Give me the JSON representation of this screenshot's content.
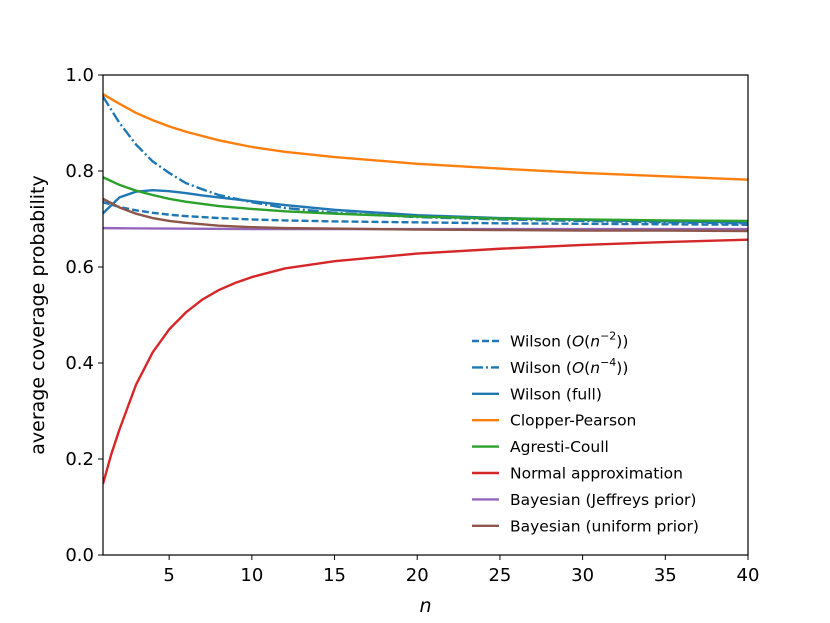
{
  "chart_data": {
    "type": "line",
    "title": "",
    "xlabel": "n",
    "ylabel": "average coverage probability",
    "xlim": [
      1,
      40
    ],
    "ylim": [
      0.0,
      1.0
    ],
    "x_ticks": [
      5,
      10,
      15,
      20,
      25,
      30,
      35,
      40
    ],
    "x_tick_labels": [
      "5",
      "10",
      "15",
      "20",
      "25",
      "30",
      "35",
      "40"
    ],
    "y_ticks": [
      0.0,
      0.2,
      0.4,
      0.6,
      0.8,
      1.0
    ],
    "y_tick_labels": [
      "0.0",
      "0.2",
      "0.4",
      "0.6",
      "0.8",
      "1.0"
    ],
    "grid": false,
    "legend_position": "lower-right",
    "series": [
      {
        "name": "Wilson (O(n^-2))",
        "legend_parts": [
          "Wilson (",
          "O",
          "(",
          "n",
          "−2",
          "))"
        ],
        "color": "#1f77b4",
        "dash": "dashed",
        "x": [
          1,
          2,
          3,
          4,
          5,
          6,
          7,
          8,
          10,
          12,
          15,
          20,
          25,
          30,
          35,
          40
        ],
        "y": [
          0.735,
          0.725,
          0.718,
          0.713,
          0.709,
          0.706,
          0.704,
          0.702,
          0.699,
          0.697,
          0.695,
          0.693,
          0.691,
          0.69,
          0.689,
          0.688
        ]
      },
      {
        "name": "Wilson (O(n^-4))",
        "legend_parts": [
          "Wilson (",
          "O",
          "(",
          "n",
          "−4",
          "))"
        ],
        "color": "#1f77b4",
        "dash": "dashdot",
        "x": [
          1,
          2,
          3,
          4,
          5,
          6,
          7,
          8,
          10,
          12,
          15,
          20,
          25,
          30,
          35,
          40
        ],
        "y": [
          0.955,
          0.9,
          0.855,
          0.82,
          0.796,
          0.775,
          0.762,
          0.75,
          0.735,
          0.723,
          0.713,
          0.704,
          0.699,
          0.696,
          0.693,
          0.691
        ]
      },
      {
        "name": "Wilson (full)",
        "legend_parts": [
          "Wilson (full)"
        ],
        "color": "#1f77b4",
        "dash": "solid",
        "x": [
          1,
          2,
          3,
          4,
          5,
          6,
          7,
          8,
          10,
          12,
          15,
          20,
          25,
          30,
          35,
          40
        ],
        "y": [
          0.712,
          0.745,
          0.757,
          0.76,
          0.758,
          0.754,
          0.749,
          0.745,
          0.737,
          0.729,
          0.719,
          0.708,
          0.702,
          0.698,
          0.695,
          0.693
        ]
      },
      {
        "name": "Clopper-Pearson",
        "legend_parts": [
          "Clopper-Pearson"
        ],
        "color": "#ff7f0e",
        "dash": "solid",
        "x": [
          1,
          2,
          3,
          4,
          5,
          6,
          8,
          10,
          12,
          15,
          20,
          25,
          30,
          35,
          40
        ],
        "y": [
          0.96,
          0.94,
          0.921,
          0.906,
          0.893,
          0.882,
          0.864,
          0.85,
          0.84,
          0.829,
          0.815,
          0.805,
          0.796,
          0.789,
          0.782
        ]
      },
      {
        "name": "Agresti-Coull",
        "legend_parts": [
          "Agresti-Coull"
        ],
        "color": "#2ca02c",
        "dash": "solid",
        "x": [
          1,
          2,
          3,
          4,
          5,
          6,
          8,
          10,
          12,
          15,
          20,
          25,
          30,
          35,
          40
        ],
        "y": [
          0.787,
          0.771,
          0.759,
          0.75,
          0.742,
          0.736,
          0.727,
          0.721,
          0.716,
          0.711,
          0.705,
          0.701,
          0.699,
          0.697,
          0.696
        ]
      },
      {
        "name": "Normal approximation",
        "legend_parts": [
          "Normal approximation"
        ],
        "color": "#d62728",
        "dash": "solid",
        "x": [
          1,
          1.5,
          2,
          3,
          4,
          5,
          6,
          7,
          8,
          9,
          10,
          12,
          15,
          20,
          25,
          30,
          35,
          40
        ],
        "y": [
          0.148,
          0.21,
          0.262,
          0.355,
          0.422,
          0.47,
          0.505,
          0.532,
          0.552,
          0.567,
          0.579,
          0.597,
          0.612,
          0.628,
          0.638,
          0.646,
          0.652,
          0.657
        ]
      },
      {
        "name": "Bayesian (Jeffreys prior)",
        "legend_parts": [
          "Bayesian (Jeffreys prior)"
        ],
        "color": "#9467bd",
        "dash": "solid",
        "x": [
          1,
          5,
          10,
          15,
          20,
          25,
          30,
          35,
          40
        ],
        "y": [
          0.681,
          0.68,
          0.679,
          0.679,
          0.679,
          0.679,
          0.679,
          0.679,
          0.679
        ]
      },
      {
        "name": "Bayesian (uniform prior)",
        "legend_parts": [
          "Bayesian (uniform prior)"
        ],
        "color": "#8c564b",
        "dash": "solid",
        "x": [
          1,
          2,
          3,
          4,
          5,
          6,
          8,
          10,
          12,
          15,
          20,
          25,
          30,
          35,
          40
        ],
        "y": [
          0.742,
          0.724,
          0.711,
          0.702,
          0.696,
          0.692,
          0.686,
          0.683,
          0.681,
          0.68,
          0.678,
          0.677,
          0.676,
          0.676,
          0.675
        ]
      }
    ]
  }
}
